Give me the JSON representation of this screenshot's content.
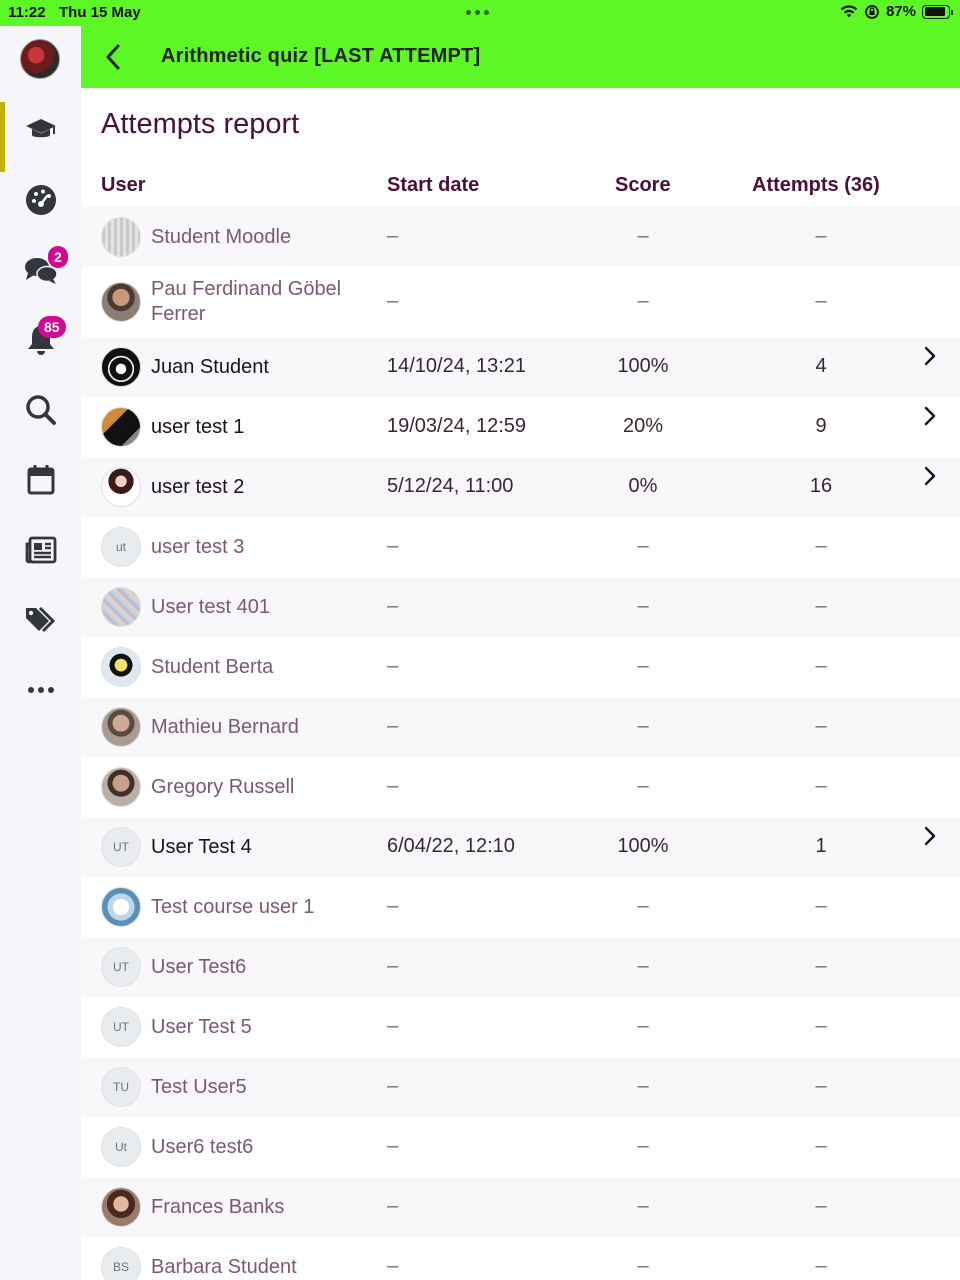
{
  "status_bar": {
    "time": "11:22",
    "date": "Thu 15 May",
    "battery": "87%",
    "battery_level": 0.87
  },
  "header": {
    "title": "Arithmetic quiz [LAST ATTEMPT]"
  },
  "sidebar": {
    "items": [
      {
        "name": "courses",
        "icon": "graduation-cap-icon"
      },
      {
        "name": "dashboard",
        "icon": "gauge-icon"
      },
      {
        "name": "messages",
        "icon": "chat-icon",
        "badge": "2"
      },
      {
        "name": "notifications",
        "icon": "bell-icon",
        "badge": "85"
      },
      {
        "name": "search",
        "icon": "search-icon"
      },
      {
        "name": "calendar",
        "icon": "calendar-icon"
      },
      {
        "name": "news",
        "icon": "newspaper-icon"
      },
      {
        "name": "tags",
        "icon": "tags-icon"
      },
      {
        "name": "more",
        "icon": "more-icon"
      }
    ]
  },
  "report": {
    "title": "Attempts report",
    "columns": {
      "user": "User",
      "start_date": "Start date",
      "score": "Score",
      "attempts": "Attempts (36)"
    },
    "rows": [
      {
        "name": "Student Moodle",
        "start": "–",
        "score": "–",
        "attempts": "–",
        "avatar": "pixel-photo",
        "has_attempt": false
      },
      {
        "name": "Pau Ferdinand Göbel Ferrer",
        "start": "–",
        "score": "–",
        "attempts": "–",
        "avatar": "photo",
        "has_attempt": false
      },
      {
        "name": "Juan Student",
        "start": "14/10/24, 13:21",
        "score": "100%",
        "attempts": "4",
        "avatar": "photo",
        "has_attempt": true
      },
      {
        "name": "user test 1",
        "start": "19/03/24, 12:59",
        "score": "20%",
        "attempts": "9",
        "avatar": "photo",
        "has_attempt": true
      },
      {
        "name": "user test 2",
        "start": "5/12/24, 11:00",
        "score": "0%",
        "attempts": "16",
        "avatar": "photo",
        "has_attempt": true
      },
      {
        "name": "user test 3",
        "start": "–",
        "score": "–",
        "attempts": "–",
        "avatar": "initials",
        "initials": "ut",
        "has_attempt": false
      },
      {
        "name": "User test 401",
        "start": "–",
        "score": "–",
        "attempts": "–",
        "avatar": "pixel-photo",
        "has_attempt": false
      },
      {
        "name": "Student Berta",
        "start": "–",
        "score": "–",
        "attempts": "–",
        "avatar": "photo",
        "has_attempt": false
      },
      {
        "name": "Mathieu Bernard",
        "start": "–",
        "score": "–",
        "attempts": "–",
        "avatar": "photo",
        "has_attempt": false
      },
      {
        "name": "Gregory Russell",
        "start": "–",
        "score": "–",
        "attempts": "–",
        "avatar": "photo",
        "has_attempt": false
      },
      {
        "name": "User Test 4",
        "start": "6/04/22, 12:10",
        "score": "100%",
        "attempts": "1",
        "avatar": "initials",
        "initials": "UT",
        "has_attempt": true
      },
      {
        "name": "Test course user 1",
        "start": "–",
        "score": "–",
        "attempts": "–",
        "avatar": "photo",
        "has_attempt": false
      },
      {
        "name": "User Test6",
        "start": "–",
        "score": "–",
        "attempts": "–",
        "avatar": "initials",
        "initials": "UT",
        "has_attempt": false
      },
      {
        "name": "User Test 5",
        "start": "–",
        "score": "–",
        "attempts": "–",
        "avatar": "initials",
        "initials": "UT",
        "has_attempt": false
      },
      {
        "name": "Test User5",
        "start": "–",
        "score": "–",
        "attempts": "–",
        "avatar": "initials",
        "initials": "TU",
        "has_attempt": false
      },
      {
        "name": "User6 test6",
        "start": "–",
        "score": "–",
        "attempts": "–",
        "avatar": "initials",
        "initials": "Ut",
        "has_attempt": false
      },
      {
        "name": "Frances Banks",
        "start": "–",
        "score": "–",
        "attempts": "–",
        "avatar": "photo",
        "has_attempt": false
      },
      {
        "name": "Barbara Student",
        "start": "–",
        "score": "–",
        "attempts": "–",
        "avatar": "initials",
        "initials": "BS",
        "has_attempt": false
      }
    ]
  },
  "colors": {
    "header_bg": "#5ef726",
    "accent_text": "#4a0f3a",
    "badge": "#d10a93",
    "active_indicator": "#c3b300"
  }
}
